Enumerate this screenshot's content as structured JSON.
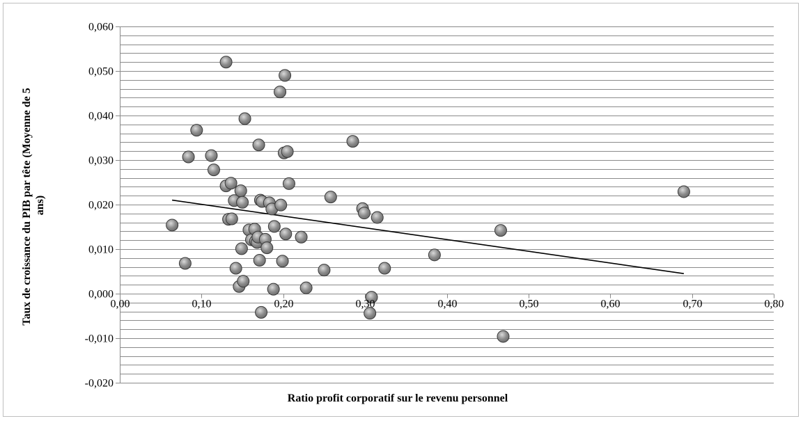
{
  "chart_data": {
    "type": "scatter",
    "xlabel": "Ratio profit corporatif sur le revenu personnel",
    "ylabel": "Taux de croissance du PIB par tête (Moyenne de 5 ans)",
    "xlim": [
      0,
      0.8
    ],
    "ylim": [
      -0.02,
      0.06
    ],
    "x_ticks": [
      0,
      0.1,
      0.2,
      0.3,
      0.4,
      0.5,
      0.6,
      0.7,
      0.8
    ],
    "x_tick_labels": [
      "0,00",
      "0,10",
      "0,20",
      "0,30",
      "0,40",
      "0,50",
      "0,60",
      "0,70",
      "0,80"
    ],
    "y_ticks": [
      0.06,
      0.05,
      0.04,
      0.03,
      0.02,
      0.01,
      0,
      -0.01,
      -0.02
    ],
    "y_tick_labels": [
      "0,060",
      "0,050",
      "0,040",
      "0,030",
      "0,020",
      "0,010",
      "0,000",
      "-0,010",
      "-0,020"
    ],
    "minor_grid_step": 0.002,
    "grid": true,
    "legend": "none",
    "marker_color": "#8c8c8c",
    "trendline_color": "#000000",
    "trendline": {
      "x": [
        0.064,
        0.69
      ],
      "y": [
        0.021,
        0.0045
      ]
    },
    "points": [
      {
        "x": 0.064,
        "y": 0.0154
      },
      {
        "x": 0.08,
        "y": 0.0068
      },
      {
        "x": 0.084,
        "y": 0.0307
      },
      {
        "x": 0.094,
        "y": 0.0367
      },
      {
        "x": 0.112,
        "y": 0.031
      },
      {
        "x": 0.115,
        "y": 0.0278
      },
      {
        "x": 0.13,
        "y": 0.052
      },
      {
        "x": 0.13,
        "y": 0.0242
      },
      {
        "x": 0.133,
        "y": 0.0167
      },
      {
        "x": 0.136,
        "y": 0.0248
      },
      {
        "x": 0.137,
        "y": 0.0168
      },
      {
        "x": 0.14,
        "y": 0.0209
      },
      {
        "x": 0.142,
        "y": 0.0057
      },
      {
        "x": 0.146,
        "y": 0.0016
      },
      {
        "x": 0.148,
        "y": 0.0231
      },
      {
        "x": 0.149,
        "y": 0.0101
      },
      {
        "x": 0.15,
        "y": 0.0205
      },
      {
        "x": 0.151,
        "y": 0.0028
      },
      {
        "x": 0.153,
        "y": 0.0393
      },
      {
        "x": 0.158,
        "y": 0.0143
      },
      {
        "x": 0.161,
        "y": 0.0121
      },
      {
        "x": 0.165,
        "y": 0.0145
      },
      {
        "x": 0.166,
        "y": 0.0118
      },
      {
        "x": 0.168,
        "y": 0.0115
      },
      {
        "x": 0.169,
        "y": 0.0127
      },
      {
        "x": 0.17,
        "y": 0.0334
      },
      {
        "x": 0.171,
        "y": 0.0075
      },
      {
        "x": 0.172,
        "y": 0.021
      },
      {
        "x": 0.173,
        "y": -0.0042
      },
      {
        "x": 0.174,
        "y": 0.0207
      },
      {
        "x": 0.178,
        "y": 0.0122
      },
      {
        "x": 0.18,
        "y": 0.0103
      },
      {
        "x": 0.183,
        "y": 0.0204
      },
      {
        "x": 0.186,
        "y": 0.019
      },
      {
        "x": 0.188,
        "y": 0.001
      },
      {
        "x": 0.189,
        "y": 0.0151
      },
      {
        "x": 0.196,
        "y": 0.0453
      },
      {
        "x": 0.197,
        "y": 0.0199
      },
      {
        "x": 0.199,
        "y": 0.0073
      },
      {
        "x": 0.201,
        "y": 0.0316
      },
      {
        "x": 0.202,
        "y": 0.049
      },
      {
        "x": 0.203,
        "y": 0.0134
      },
      {
        "x": 0.205,
        "y": 0.0319
      },
      {
        "x": 0.207,
        "y": 0.0247
      },
      {
        "x": 0.222,
        "y": 0.0127
      },
      {
        "x": 0.228,
        "y": 0.0013
      },
      {
        "x": 0.25,
        "y": 0.0053
      },
      {
        "x": 0.258,
        "y": 0.0217
      },
      {
        "x": 0.285,
        "y": 0.0342
      },
      {
        "x": 0.297,
        "y": 0.0191
      },
      {
        "x": 0.299,
        "y": 0.0181
      },
      {
        "x": 0.306,
        "y": -0.0044
      },
      {
        "x": 0.308,
        "y": -0.0008
      },
      {
        "x": 0.315,
        "y": 0.0171
      },
      {
        "x": 0.324,
        "y": 0.0057
      },
      {
        "x": 0.385,
        "y": 0.0087
      },
      {
        "x": 0.466,
        "y": 0.0142
      },
      {
        "x": 0.469,
        "y": -0.0096
      },
      {
        "x": 0.69,
        "y": 0.0229
      }
    ]
  }
}
